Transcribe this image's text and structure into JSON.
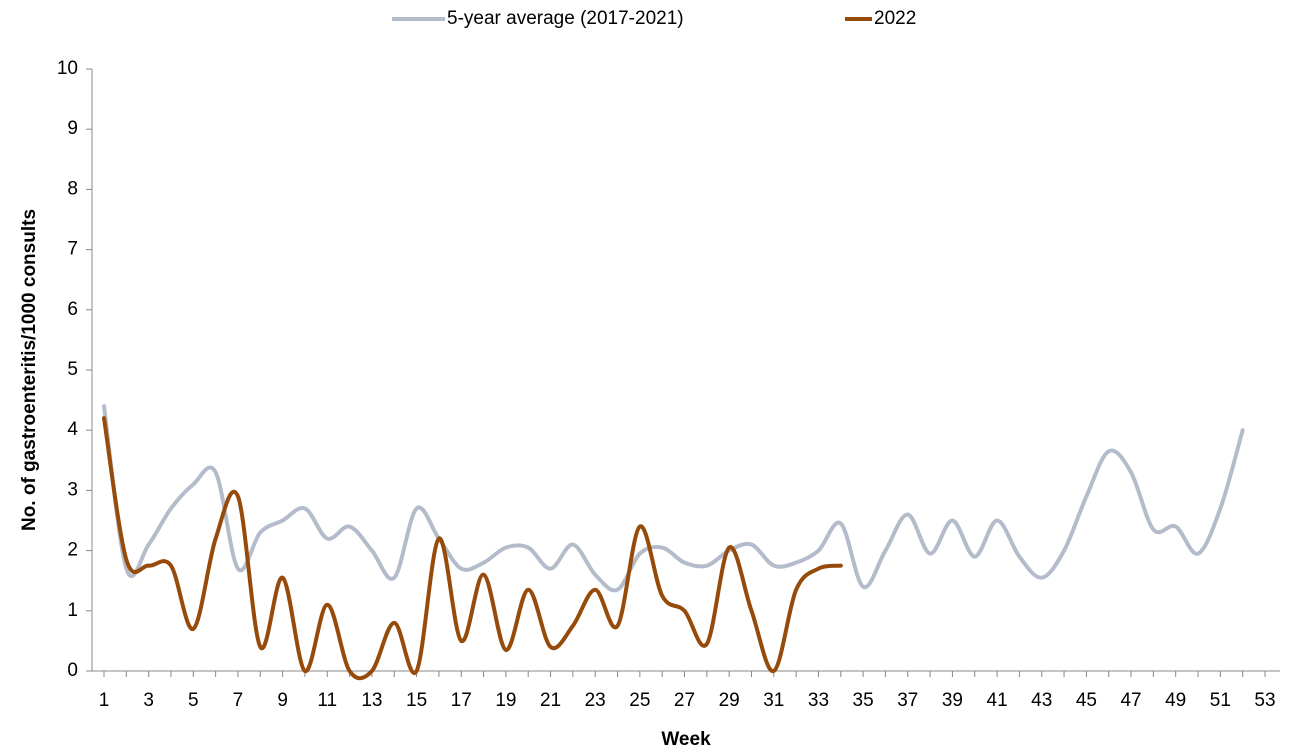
{
  "chart_data": {
    "type": "line",
    "x_label": "Week",
    "y_label": "No. of gastroenteritis/1000 consults",
    "categories": [
      "1",
      null,
      "3",
      null,
      "5",
      null,
      "7",
      null,
      "9",
      null,
      "11",
      null,
      "13",
      null,
      "15",
      null,
      "17",
      null,
      "19",
      null,
      "21",
      null,
      "23",
      null,
      "25",
      null,
      "27",
      null,
      "29",
      null,
      "31",
      null,
      "33",
      null,
      "35",
      null,
      "37",
      null,
      "39",
      null,
      "41",
      null,
      "43",
      null,
      "45",
      null,
      "47",
      null,
      "49",
      null,
      "51",
      null,
      "53"
    ],
    "series": [
      {
        "name": "5-year average (2017-2021)",
        "color": "#b4bccc",
        "values": [
          4.4,
          1.7,
          2.1,
          2.7,
          3.1,
          3.3,
          1.7,
          2.3,
          2.5,
          2.7,
          2.2,
          2.4,
          2.0,
          1.55,
          2.7,
          2.2,
          1.7,
          1.8,
          2.05,
          2.05,
          1.7,
          2.1,
          1.6,
          1.35,
          1.95,
          2.05,
          1.8,
          1.75,
          2.0,
          2.1,
          1.75,
          1.8,
          2.0,
          2.45,
          1.4,
          2.0,
          2.6,
          1.95,
          2.5,
          1.9,
          2.5,
          1.9,
          1.55,
          2.0,
          2.9,
          3.65,
          3.3,
          2.35,
          2.4,
          1.95,
          2.7,
          4.0,
          null
        ]
      },
      {
        "name": "2022",
        "color": "#964b0a",
        "values": [
          4.2,
          1.85,
          1.75,
          1.75,
          0.7,
          2.2,
          2.9,
          0.4,
          1.55,
          0.0,
          1.1,
          0.0,
          0.0,
          0.8,
          0.0,
          2.2,
          0.5,
          1.6,
          0.35,
          1.35,
          0.4,
          0.75,
          1.35,
          0.75,
          2.4,
          1.25,
          1.0,
          0.45,
          2.05,
          1.0,
          0.0,
          1.35,
          1.7,
          1.75,
          null,
          null,
          null,
          null,
          null,
          null,
          null,
          null,
          null,
          null,
          null,
          null,
          null,
          null,
          null,
          null,
          null,
          null,
          null
        ]
      }
    ],
    "ylim": [
      0,
      10
    ],
    "yticks": [
      0,
      1,
      2,
      3,
      4,
      5,
      6,
      7,
      8,
      9,
      10
    ],
    "legend": "top",
    "smooth": true
  }
}
